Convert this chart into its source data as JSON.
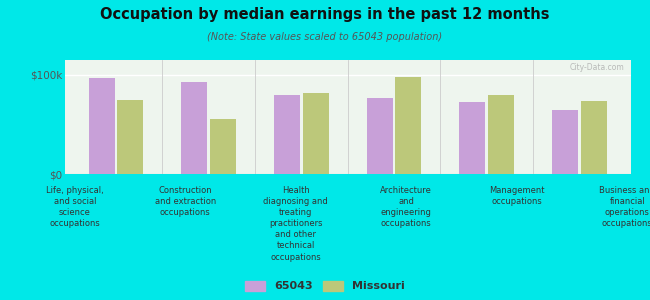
{
  "title": "Occupation by median earnings in the past 12 months",
  "subtitle": "(Note: State values scaled to 65043 population)",
  "background_color": "#00e8e8",
  "plot_bg_top": "#d8edd8",
  "plot_bg_bottom": "#eef5ee",
  "categories": [
    "Life, physical,\nand social\nscience\noccupations",
    "Construction\nand extraction\noccupations",
    "Health\ndiagnosing and\ntreating\npractitioners\nand other\ntechnical\noccupations",
    "Architecture\nand\nengineering\noccupations",
    "Management\noccupations",
    "Business and\nfinancial\noperations\noccupations"
  ],
  "values_65043": [
    97000,
    93000,
    80000,
    77000,
    73000,
    65000
  ],
  "values_missouri": [
    75000,
    55000,
    82000,
    98000,
    80000,
    74000
  ],
  "color_65043": "#c8a0d8",
  "color_missouri": "#bcc87a",
  "yticks": [
    0,
    100000
  ],
  "ytick_labels": [
    "$0",
    "$100k"
  ],
  "ylim": [
    0,
    115000
  ],
  "legend_label_65043": "65043",
  "legend_label_missouri": "Missouri",
  "watermark": "City-Data.com"
}
